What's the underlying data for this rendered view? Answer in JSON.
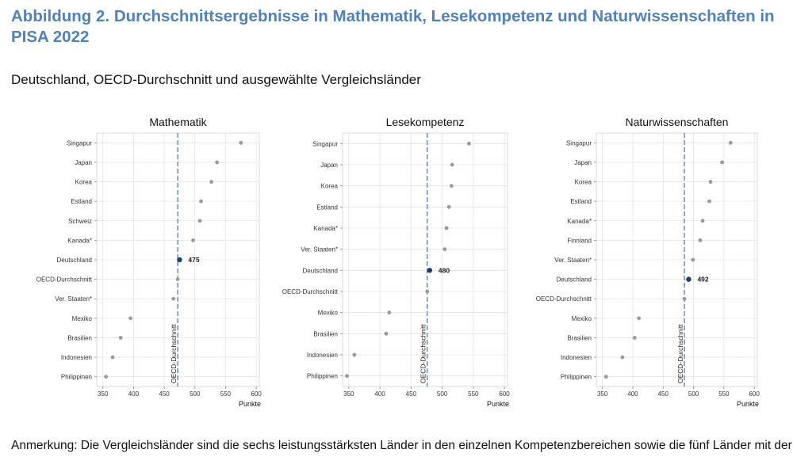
{
  "figure": {
    "title": "Abbildung 2. Durchschnittsergebnisse in Mathematik, Lesekompetenz und Naturwissenschaften in PISA 2022",
    "subtitle": "Deutschland, OECD-Durchschnitt und ausgewählte Vergleichsländer",
    "note": "Anmerkung: Die Vergleichsländer sind die sechs leistungsstärksten Länder in den einzelnen Kompetenzbereichen sowie die fünf Länder mit der"
  },
  "colors": {
    "title": "#4f81bd",
    "dot": "#9a9a9a",
    "highlight": "#1f3d6e",
    "reference_line": "#4f6fa8",
    "grid": "#e4e4e4"
  },
  "chart_data": [
    {
      "type": "scatter",
      "title": "Mathematik",
      "xlabel": "Punkte",
      "ylabel": "",
      "xlim": [
        340,
        605
      ],
      "xticks": [
        350,
        400,
        450,
        500,
        550,
        600
      ],
      "reference_line": {
        "label": "OECD-Durchschnitt",
        "value": 472
      },
      "highlight": {
        "category": "Deutschland",
        "label": "475"
      },
      "categories": [
        "Singapur",
        "Japan",
        "Korea",
        "Estland",
        "Schweiz",
        "Kanada*",
        "Deutschland",
        "OECD-Durchschnitt",
        "Ver. Staaten*",
        "Mexiko",
        "Brasilien",
        "Indonesien",
        "Philippinen"
      ],
      "values": [
        575,
        536,
        527,
        510,
        508,
        497,
        475,
        472,
        465,
        395,
        379,
        366,
        355
      ]
    },
    {
      "type": "scatter",
      "title": "Lesekompetenz",
      "xlabel": "Punkte",
      "ylabel": "",
      "xlim": [
        340,
        605
      ],
      "xticks": [
        350,
        400,
        450,
        500,
        550,
        600
      ],
      "reference_line": {
        "label": "OECD-Durchschnitt",
        "value": 476
      },
      "highlight": {
        "category": "Deutschland",
        "label": "480"
      },
      "categories": [
        "Singapur",
        "Japan",
        "Korea",
        "Estland",
        "Kanada*",
        "Ver. Staaten*",
        "Deutschland",
        "OECD-Durchschnitt",
        "Mexiko",
        "Brasilien",
        "Indonesien",
        "Philippinen"
      ],
      "values": [
        543,
        516,
        515,
        511,
        507,
        504,
        480,
        476,
        415,
        410,
        359,
        347
      ]
    },
    {
      "type": "scatter",
      "title": "Naturwissenschaften",
      "xlabel": "Punkte",
      "ylabel": "",
      "xlim": [
        340,
        605
      ],
      "xticks": [
        350,
        400,
        450,
        500,
        550,
        600
      ],
      "reference_line": {
        "label": "OECD-Durchschnitt",
        "value": 485
      },
      "highlight": {
        "category": "Deutschland",
        "label": "492"
      },
      "categories": [
        "Singapur",
        "Japan",
        "Korea",
        "Estland",
        "Kanada*",
        "Finnland",
        "Ver. Staaten*",
        "Deutschland",
        "OECD-Durchschnitt",
        "Mexiko",
        "Brasilien",
        "Indonesien",
        "Philippinen"
      ],
      "values": [
        561,
        547,
        528,
        526,
        515,
        511,
        499,
        492,
        485,
        410,
        403,
        383,
        356
      ]
    }
  ]
}
